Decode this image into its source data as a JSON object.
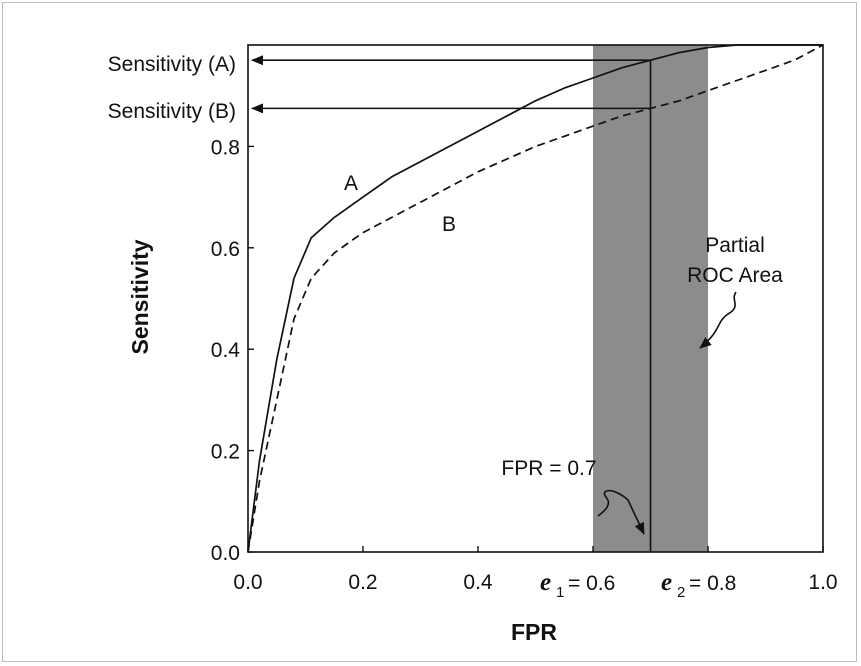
{
  "chart_data": {
    "type": "line",
    "xlabel": "FPR",
    "ylabel": "Sensitivity",
    "xlim": [
      0,
      1
    ],
    "ylim": [
      0,
      1
    ],
    "x_ticks": [
      "0.0",
      "0.2",
      "0.4",
      "0.6",
      "0.8",
      "1.0"
    ],
    "y_ticks": [
      "0.0",
      "0.2",
      "0.4",
      "0.6",
      "0.8"
    ],
    "series": [
      {
        "name": "A",
        "style": "solid",
        "x": [
          0,
          0.02,
          0.05,
          0.08,
          0.11,
          0.15,
          0.2,
          0.25,
          0.3,
          0.35,
          0.4,
          0.45,
          0.5,
          0.55,
          0.6,
          0.65,
          0.7,
          0.75,
          0.8,
          0.85,
          0.9,
          0.95,
          1.0
        ],
        "y": [
          0,
          0.18,
          0.38,
          0.54,
          0.62,
          0.66,
          0.7,
          0.74,
          0.77,
          0.8,
          0.83,
          0.86,
          0.89,
          0.915,
          0.935,
          0.955,
          0.97,
          0.985,
          0.995,
          1.0,
          1.0,
          1.0,
          1.0
        ]
      },
      {
        "name": "B",
        "style": "dashed",
        "x": [
          0,
          0.02,
          0.05,
          0.08,
          0.11,
          0.15,
          0.2,
          0.25,
          0.3,
          0.35,
          0.4,
          0.45,
          0.5,
          0.55,
          0.6,
          0.65,
          0.7,
          0.75,
          0.8,
          0.85,
          0.9,
          0.95,
          1.0
        ],
        "y": [
          0,
          0.14,
          0.3,
          0.46,
          0.54,
          0.59,
          0.63,
          0.66,
          0.69,
          0.72,
          0.75,
          0.775,
          0.8,
          0.82,
          0.84,
          0.86,
          0.875,
          0.89,
          0.91,
          0.93,
          0.95,
          0.97,
          1.0
        ]
      }
    ],
    "shaded_region": {
      "x_start": 0.6,
      "x_end": 0.8,
      "color": "#8c8c8c"
    },
    "vertical_line_x": 0.7,
    "arrow_a_y": 0.97,
    "arrow_b_y": 0.875,
    "annotations": {
      "sens_a": "Sensitivity (A)",
      "sens_b": "Sensitivity (B)",
      "curve_a": "A",
      "curve_b": "B",
      "partial_line1": "Partial",
      "partial_line2": "ROC Area",
      "fpr_note": "FPR = 0.7",
      "e1_symbol": "e",
      "e1_sub": "1",
      "e1_value": "= 0.6",
      "e2_symbol": "e",
      "e2_sub": "2",
      "e2_value": "= 0.8"
    }
  }
}
